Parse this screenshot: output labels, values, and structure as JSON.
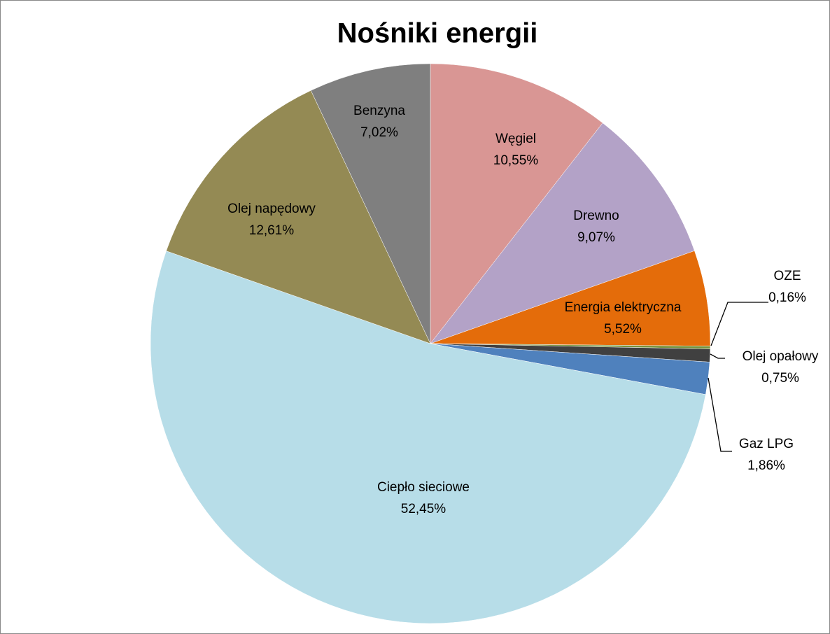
{
  "chart_data": {
    "type": "pie",
    "title": "Nośniki energii",
    "categories": [
      "Węgiel",
      "Drewno",
      "Energia elektryczna",
      "OZE",
      "Olej opałowy",
      "Gaz LPG",
      "Ciepło sieciowe",
      "Olej napędowy",
      "Benzyna"
    ],
    "values": [
      10.55,
      9.07,
      5.52,
      0.16,
      0.75,
      1.86,
      52.45,
      12.61,
      7.02
    ],
    "value_labels": [
      "10,55%",
      "9,07%",
      "5,52%",
      "0,16%",
      "0,75%",
      "1,86%",
      "52,45%",
      "12,61%",
      "7,02%"
    ],
    "colors": [
      "#d99694",
      "#b3a2c7",
      "#e46c0a",
      "#77933c",
      "#404040",
      "#4f81bd",
      "#b7dde8",
      "#948a54",
      "#7f7f7f"
    ]
  }
}
